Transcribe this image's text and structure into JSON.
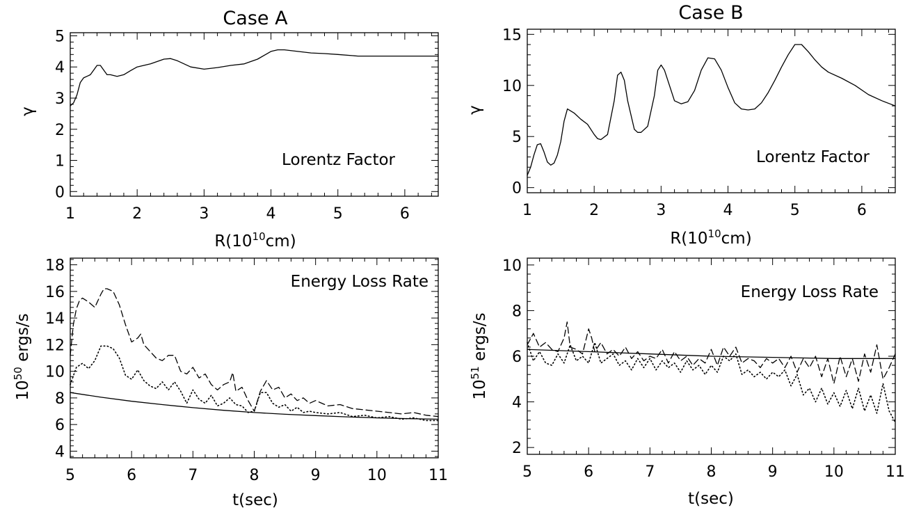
{
  "chart_data": [
    {
      "type": "line",
      "title": "Case A",
      "xlabel": "R(10",
      "xlabel_sup": "10",
      "xlabel_unit": "cm)",
      "ylabel": "γ",
      "annotation": "Lorentz Factor",
      "xlim": [
        1,
        6.5
      ],
      "ylim": [
        -0.15,
        5.1
      ],
      "xticks": [
        1,
        2,
        3,
        4,
        5,
        6
      ],
      "xtick_labels": [
        "1",
        "2",
        "3",
        "4",
        "5",
        "6"
      ],
      "yticks": [
        0,
        1,
        2,
        3,
        4,
        5
      ],
      "ytick_labels": [
        "0",
        "1",
        "2",
        "3",
        "4",
        "5"
      ],
      "series": [
        {
          "style": "solid",
          "x": [
            1.0,
            1.05,
            1.1,
            1.15,
            1.2,
            1.25,
            1.3,
            1.35,
            1.4,
            1.45,
            1.5,
            1.55,
            1.6,
            1.7,
            1.8,
            1.9,
            2.0,
            2.2,
            2.4,
            2.5,
            2.6,
            2.8,
            3.0,
            3.2,
            3.4,
            3.6,
            3.8,
            4.0,
            4.1,
            4.2,
            4.4,
            4.6,
            4.8,
            5.0,
            5.3,
            5.6,
            6.0,
            6.5
          ],
          "y": [
            2.75,
            2.85,
            3.1,
            3.5,
            3.65,
            3.7,
            3.75,
            3.9,
            4.05,
            4.05,
            3.9,
            3.75,
            3.75,
            3.7,
            3.75,
            3.88,
            4.0,
            4.1,
            4.25,
            4.27,
            4.2,
            4.0,
            3.93,
            3.98,
            4.05,
            4.1,
            4.25,
            4.5,
            4.55,
            4.55,
            4.5,
            4.45,
            4.43,
            4.4,
            4.35,
            4.35,
            4.35,
            4.35
          ]
        }
      ]
    },
    {
      "type": "line",
      "title": "Case B",
      "xlabel": "R(10",
      "xlabel_sup": "10",
      "xlabel_unit": "cm)",
      "ylabel": "γ",
      "annotation": "Lorentz Factor",
      "xlim": [
        1,
        6.5
      ],
      "ylim": [
        -0.5,
        15.5
      ],
      "xticks": [
        1,
        2,
        3,
        4,
        5,
        6
      ],
      "xtick_labels": [
        "1",
        "2",
        "3",
        "4",
        "5",
        "6"
      ],
      "yticks": [
        0,
        5,
        10,
        15
      ],
      "ytick_labels": [
        "0",
        "5",
        "10",
        "15"
      ],
      "series": [
        {
          "style": "solid",
          "x": [
            1.0,
            1.05,
            1.1,
            1.15,
            1.2,
            1.25,
            1.3,
            1.35,
            1.4,
            1.45,
            1.5,
            1.55,
            1.6,
            1.7,
            1.8,
            1.9,
            2.0,
            2.05,
            2.1,
            2.2,
            2.3,
            2.35,
            2.4,
            2.45,
            2.5,
            2.6,
            2.65,
            2.7,
            2.8,
            2.9,
            2.95,
            3.0,
            3.05,
            3.1,
            3.2,
            3.3,
            3.4,
            3.5,
            3.6,
            3.7,
            3.8,
            3.9,
            4.0,
            4.1,
            4.2,
            4.3,
            4.4,
            4.5,
            4.6,
            4.7,
            4.8,
            4.9,
            5.0,
            5.1,
            5.2,
            5.3,
            5.4,
            5.5,
            5.7,
            5.9,
            6.1,
            6.3,
            6.5
          ],
          "y": [
            1.2,
            2.0,
            3.2,
            4.2,
            4.3,
            3.5,
            2.5,
            2.2,
            2.4,
            3.2,
            4.5,
            6.5,
            7.7,
            7.3,
            6.7,
            6.2,
            5.2,
            4.8,
            4.7,
            5.2,
            8.5,
            11.0,
            11.3,
            10.5,
            8.5,
            5.7,
            5.4,
            5.4,
            6.0,
            9.0,
            11.5,
            12.0,
            11.5,
            10.5,
            8.5,
            8.2,
            8.4,
            9.5,
            11.5,
            12.7,
            12.6,
            11.5,
            9.8,
            8.3,
            7.7,
            7.6,
            7.7,
            8.3,
            9.3,
            10.5,
            11.8,
            13.0,
            14.0,
            14.0,
            13.3,
            12.5,
            11.8,
            11.3,
            10.7,
            10.0,
            9.1,
            8.5,
            8.0
          ]
        }
      ]
    },
    {
      "type": "line",
      "title": "",
      "xlabel": "t(sec)",
      "ylabel_base": "10",
      "ylabel_sup": "50",
      "ylabel_unit": " ergs/s",
      "annotation": "Energy Loss Rate",
      "xlim": [
        5,
        11
      ],
      "ylim": [
        3.5,
        18.5
      ],
      "xticks": [
        5,
        6,
        7,
        8,
        9,
        10,
        11
      ],
      "xtick_labels": [
        "5",
        "6",
        "7",
        "8",
        "9",
        "10",
        "11"
      ],
      "yticks": [
        4,
        6,
        8,
        10,
        12,
        14,
        16,
        18
      ],
      "ytick_labels": [
        "4",
        "6",
        "8",
        "10",
        "12",
        "14",
        "16",
        "18"
      ],
      "series": [
        {
          "style": "solid",
          "x": [
            5.0,
            5.5,
            6.0,
            6.5,
            7.0,
            7.5,
            8.0,
            8.5,
            9.0,
            9.5,
            10.0,
            10.5,
            11.0
          ],
          "y": [
            8.4,
            8.05,
            7.75,
            7.5,
            7.27,
            7.07,
            6.9,
            6.77,
            6.67,
            6.58,
            6.5,
            6.44,
            6.4
          ]
        },
        {
          "style": "dashed",
          "x": [
            5.0,
            5.05,
            5.1,
            5.15,
            5.2,
            5.3,
            5.4,
            5.5,
            5.55,
            5.6,
            5.7,
            5.8,
            5.9,
            6.0,
            6.1,
            6.15,
            6.2,
            6.3,
            6.4,
            6.5,
            6.6,
            6.7,
            6.8,
            6.9,
            7.0,
            7.1,
            7.2,
            7.3,
            7.4,
            7.5,
            7.6,
            7.65,
            7.7,
            7.8,
            7.9,
            8.0,
            8.1,
            8.2,
            8.3,
            8.4,
            8.5,
            8.6,
            8.7,
            8.8,
            8.9,
            9.0,
            9.2,
            9.4,
            9.6,
            9.8,
            10.0,
            10.2,
            10.4,
            10.6,
            10.8,
            11.0
          ],
          "y": [
            11.2,
            13.5,
            14.7,
            15.3,
            15.5,
            15.2,
            14.8,
            15.8,
            16.2,
            16.2,
            16.0,
            15.0,
            13.5,
            12.2,
            12.5,
            12.8,
            12.0,
            11.5,
            11.0,
            10.8,
            11.2,
            11.2,
            10.0,
            9.8,
            10.3,
            9.5,
            9.8,
            9.0,
            8.6,
            9.0,
            9.2,
            9.9,
            8.5,
            8.8,
            7.8,
            7.0,
            8.5,
            9.3,
            8.6,
            8.8,
            8.0,
            8.3,
            7.8,
            8.0,
            7.6,
            7.8,
            7.4,
            7.5,
            7.2,
            7.1,
            7.0,
            6.9,
            6.8,
            6.9,
            6.7,
            6.6
          ]
        },
        {
          "style": "dotted",
          "x": [
            5.0,
            5.1,
            5.2,
            5.3,
            5.4,
            5.5,
            5.6,
            5.7,
            5.8,
            5.9,
            6.0,
            6.1,
            6.2,
            6.3,
            6.4,
            6.5,
            6.6,
            6.7,
            6.8,
            6.9,
            7.0,
            7.1,
            7.2,
            7.3,
            7.4,
            7.5,
            7.6,
            7.7,
            7.8,
            7.9,
            8.0,
            8.1,
            8.2,
            8.3,
            8.4,
            8.5,
            8.6,
            8.7,
            8.8,
            8.9,
            9.0,
            9.2,
            9.4,
            9.6,
            9.8,
            10.0,
            10.2,
            10.4,
            10.6,
            10.8,
            11.0
          ],
          "y": [
            9.0,
            10.3,
            10.6,
            10.2,
            10.8,
            11.9,
            11.9,
            11.7,
            11.0,
            9.7,
            9.4,
            10.1,
            9.3,
            8.9,
            8.7,
            9.2,
            8.6,
            9.2,
            8.5,
            7.6,
            8.6,
            7.9,
            7.6,
            8.2,
            7.4,
            7.6,
            8.0,
            7.5,
            7.4,
            6.9,
            7.0,
            8.4,
            8.4,
            7.6,
            7.3,
            7.5,
            7.0,
            7.3,
            6.9,
            7.0,
            6.9,
            6.8,
            6.9,
            6.6,
            6.7,
            6.5,
            6.6,
            6.4,
            6.5,
            6.3,
            6.3
          ]
        }
      ]
    },
    {
      "type": "line",
      "title": "",
      "xlabel": "t(sec)",
      "ylabel_base": "10",
      "ylabel_sup": "51",
      "ylabel_unit": " ergs/s",
      "annotation": "Energy Loss Rate",
      "xlim": [
        5,
        11
      ],
      "ylim": [
        1.7,
        10.3
      ],
      "xticks": [
        5,
        6,
        7,
        8,
        9,
        10,
        11
      ],
      "xtick_labels": [
        "5",
        "6",
        "7",
        "8",
        "9",
        "10",
        "11"
      ],
      "yticks": [
        2,
        4,
        6,
        8,
        10
      ],
      "ytick_labels": [
        "2",
        "4",
        "6",
        "8",
        "10"
      ],
      "series": [
        {
          "style": "solid",
          "x": [
            5.0,
            6.0,
            7.0,
            8.0,
            9.0,
            10.0,
            11.0
          ],
          "y": [
            6.3,
            6.2,
            6.1,
            6.0,
            5.95,
            5.9,
            5.9
          ]
        },
        {
          "style": "dashed",
          "x": [
            5.0,
            5.1,
            5.2,
            5.3,
            5.4,
            5.5,
            5.6,
            5.65,
            5.7,
            5.8,
            5.9,
            6.0,
            6.05,
            6.1,
            6.2,
            6.3,
            6.4,
            6.5,
            6.6,
            6.7,
            6.8,
            6.9,
            7.0,
            7.1,
            7.2,
            7.3,
            7.4,
            7.5,
            7.6,
            7.7,
            7.8,
            7.9,
            8.0,
            8.1,
            8.2,
            8.3,
            8.4,
            8.5,
            8.6,
            8.7,
            8.8,
            8.9,
            9.0,
            9.1,
            9.2,
            9.3,
            9.4,
            9.5,
            9.6,
            9.7,
            9.8,
            9.9,
            10.0,
            10.1,
            10.2,
            10.3,
            10.4,
            10.5,
            10.6,
            10.7,
            10.8,
            10.9,
            11.0
          ],
          "y": [
            6.5,
            7.0,
            6.4,
            6.6,
            6.3,
            6.2,
            6.8,
            7.5,
            6.4,
            6.3,
            6.1,
            7.2,
            6.8,
            6.2,
            6.6,
            6.1,
            6.3,
            6.0,
            6.4,
            5.9,
            6.2,
            5.8,
            6.0,
            5.9,
            6.3,
            5.7,
            6.2,
            5.8,
            6.0,
            5.6,
            5.9,
            5.7,
            6.3,
            5.6,
            6.4,
            6.0,
            6.4,
            5.7,
            5.9,
            5.8,
            5.5,
            5.9,
            5.7,
            5.9,
            5.5,
            6.0,
            5.3,
            5.9,
            5.5,
            6.0,
            5.1,
            5.9,
            4.8,
            6.0,
            5.1,
            5.9,
            4.9,
            6.1,
            5.3,
            6.5,
            5.0,
            5.5,
            6.1
          ]
        },
        {
          "style": "dotted",
          "x": [
            5.0,
            5.1,
            5.2,
            5.3,
            5.4,
            5.5,
            5.6,
            5.7,
            5.8,
            5.9,
            6.0,
            6.1,
            6.2,
            6.3,
            6.4,
            6.5,
            6.6,
            6.7,
            6.8,
            6.9,
            7.0,
            7.1,
            7.2,
            7.3,
            7.4,
            7.5,
            7.6,
            7.7,
            7.8,
            7.9,
            8.0,
            8.1,
            8.2,
            8.3,
            8.4,
            8.5,
            8.6,
            8.7,
            8.8,
            8.9,
            9.0,
            9.1,
            9.2,
            9.3,
            9.4,
            9.5,
            9.6,
            9.7,
            9.8,
            9.9,
            10.0,
            10.1,
            10.2,
            10.3,
            10.4,
            10.5,
            10.6,
            10.7,
            10.8,
            10.9,
            11.0
          ],
          "y": [
            6.6,
            5.8,
            6.2,
            5.7,
            5.6,
            6.1,
            5.7,
            6.5,
            5.8,
            6.0,
            5.7,
            6.6,
            5.7,
            5.9,
            6.1,
            5.6,
            5.8,
            5.4,
            5.9,
            5.5,
            5.9,
            5.4,
            5.8,
            5.5,
            5.7,
            5.3,
            5.8,
            5.4,
            5.6,
            5.2,
            5.6,
            5.3,
            6.0,
            5.8,
            6.1,
            5.2,
            5.4,
            5.1,
            5.3,
            5.0,
            5.3,
            5.1,
            5.4,
            4.7,
            5.2,
            4.3,
            4.6,
            4.0,
            4.6,
            3.9,
            4.4,
            3.8,
            4.5,
            3.7,
            4.6,
            3.6,
            4.3,
            3.5,
            4.8,
            3.6,
            3.1
          ]
        }
      ]
    }
  ]
}
